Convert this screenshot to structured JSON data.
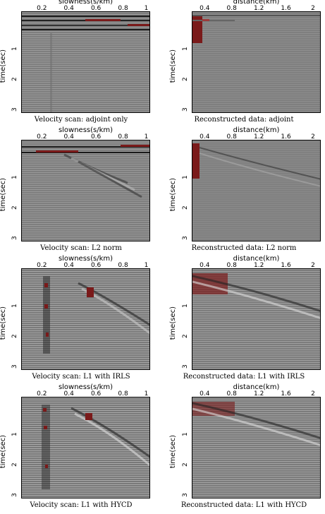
{
  "panels": [
    {
      "xlabel": "slowness(s/km)",
      "xticks": [
        "0.2",
        "0.4",
        "0.6",
        "0.8",
        "1"
      ],
      "ylabel": "time(sec)",
      "yticks": [
        "1",
        "2",
        "3"
      ],
      "caption": "Velocity scan: adjoint only"
    },
    {
      "xlabel": "distance(km)",
      "xticks": [
        "0.4",
        "0.8",
        "1.2",
        "1.6",
        "2"
      ],
      "ylabel": "time(sec)",
      "yticks": [
        "1",
        "2",
        "3"
      ],
      "caption": "Reconstructed data: adjoint"
    },
    {
      "xlabel": "slowness(s/km)",
      "xticks": [
        "0.2",
        "0.4",
        "0.6",
        "0.8",
        "1"
      ],
      "ylabel": "time(sec)",
      "yticks": [
        "1",
        "2",
        "3"
      ],
      "caption": "Velocity scan: L2 norm"
    },
    {
      "xlabel": "distance(km)",
      "xticks": [
        "0.4",
        "0.8",
        "1.2",
        "1.6",
        "2"
      ],
      "ylabel": "time(sec)",
      "yticks": [
        "1",
        "2",
        "3"
      ],
      "caption": "Reconstructed data: L2 norm"
    },
    {
      "xlabel": "slowness(s/km)",
      "xticks": [
        "0.2",
        "0.4",
        "0.6",
        "0.8",
        "1"
      ],
      "ylabel": "time(sec)",
      "yticks": [
        "1",
        "2",
        "3"
      ],
      "caption": "Velocity scan: L1 with IRLS"
    },
    {
      "xlabel": "distance(km)",
      "xticks": [
        "0.4",
        "0.8",
        "1.2",
        "1.6",
        "2"
      ],
      "ylabel": "time(sec)",
      "yticks": [
        "1",
        "2",
        "3"
      ],
      "caption": "Reconstructed data: L1 with IRLS"
    },
    {
      "xlabel": "slowness(s/km)",
      "xticks": [
        "0.2",
        "0.4",
        "0.6",
        "0.8",
        "1"
      ],
      "ylabel": "time(sec)",
      "yticks": [
        "1",
        "2",
        "3"
      ],
      "caption": "Velocity scan: L1 with HYCD"
    },
    {
      "xlabel": "distance(km)",
      "xticks": [
        "0.4",
        "0.8",
        "1.2",
        "1.6",
        "2"
      ],
      "ylabel": "time(sec)",
      "yticks": [
        "1",
        "2",
        "3"
      ],
      "caption": "Reconstructed data: L1 with HYCD"
    }
  ],
  "colors": {
    "background": "#808080",
    "highlight": "#7a1a1a"
  }
}
